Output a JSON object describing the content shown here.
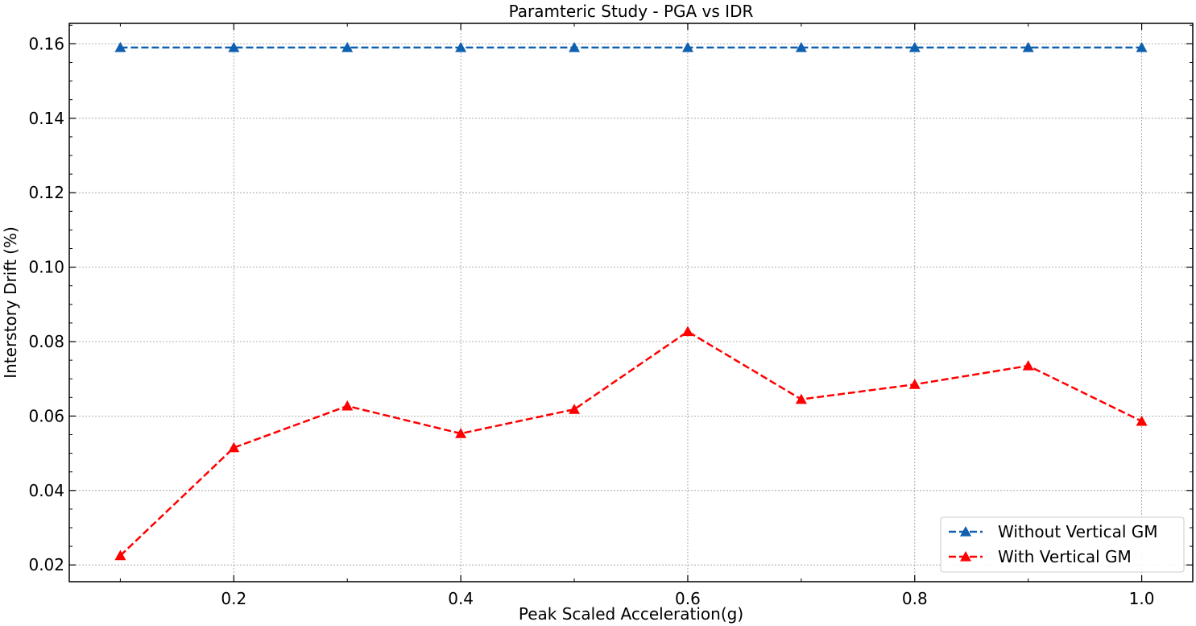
{
  "chart_data": {
    "type": "line",
    "title": "Paramteric Study - PGA vs IDR",
    "xlabel": "Peak Scaled Acceleration(g)",
    "ylabel": "Interstory Drift (%)",
    "xlim": [
      0.055,
      1.045
    ],
    "ylim": [
      0.0155,
      0.1655
    ],
    "xticks": [
      0.2,
      0.4,
      0.6,
      0.8,
      1.0
    ],
    "xtick_labels": [
      "0.2",
      "0.4",
      "0.6",
      "0.8",
      "1.0"
    ],
    "yticks": [
      0.02,
      0.04,
      0.06,
      0.08,
      0.1,
      0.12,
      0.14,
      0.16
    ],
    "ytick_labels": [
      "0.02",
      "0.04",
      "0.06",
      "0.08",
      "0.10",
      "0.12",
      "0.14",
      "0.16"
    ],
    "grid": true,
    "legend_position": "lower-right",
    "x": [
      0.1,
      0.2,
      0.3,
      0.4,
      0.5,
      0.6,
      0.7,
      0.8,
      0.9,
      1.0
    ],
    "series": [
      {
        "name": "Without Vertical GM",
        "color": "#1060b0",
        "marker": "triangle",
        "linestyle": "dashed",
        "values": [
          0.159,
          0.159,
          0.159,
          0.159,
          0.159,
          0.159,
          0.159,
          0.159,
          0.159,
          0.159
        ]
      },
      {
        "name": "With Vertical GM",
        "color": "#ff0000",
        "marker": "triangle",
        "linestyle": "dashed",
        "values": [
          0.0225,
          0.0515,
          0.0627,
          0.0553,
          0.0618,
          0.0827,
          0.0645,
          0.0685,
          0.0735,
          0.0586
        ]
      }
    ]
  }
}
